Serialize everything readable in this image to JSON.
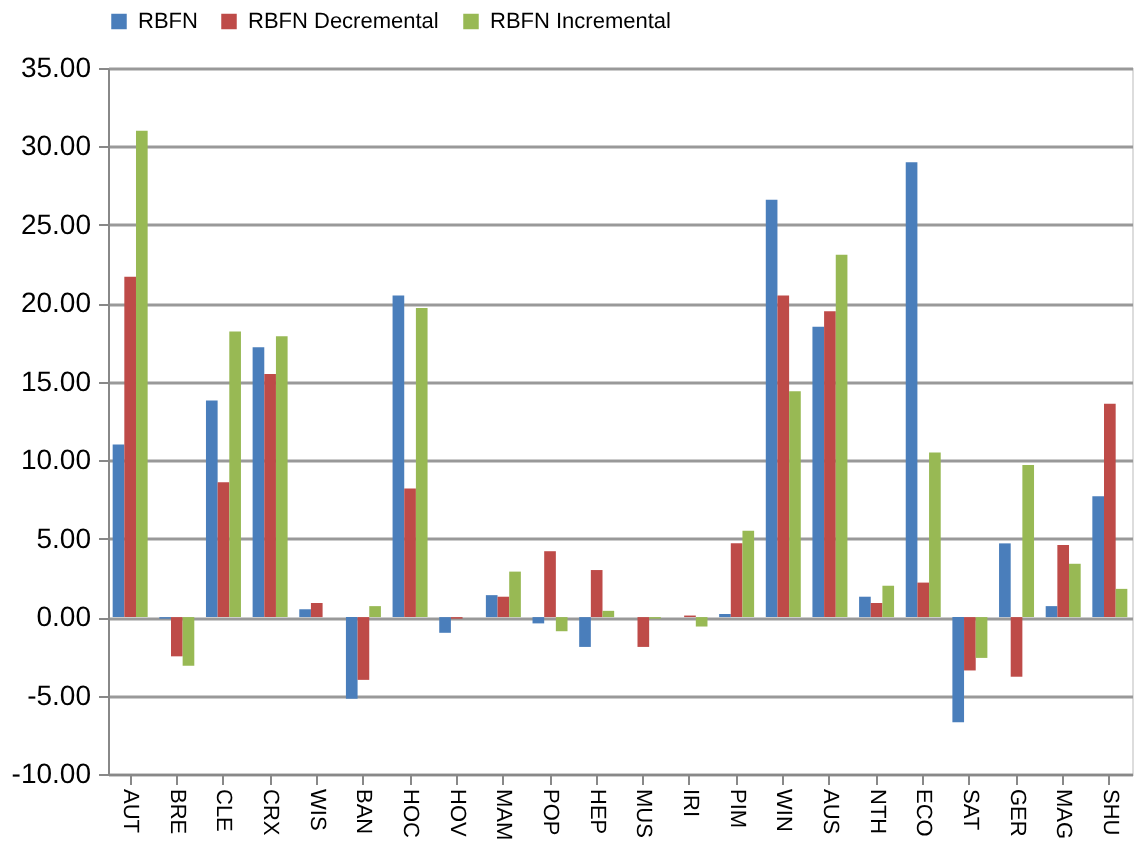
{
  "chart_data": {
    "type": "bar",
    "categories": [
      "AUT",
      "BRE",
      "CLE",
      "CRX",
      "WIS",
      "BAN",
      "HOC",
      "HOV",
      "MAM",
      "POP",
      "HEP",
      "MUS",
      "IRI",
      "PIM",
      "WIN",
      "AUS",
      "NTH",
      "ECO",
      "SAT",
      "GER",
      "MAG",
      "SHU"
    ],
    "series": [
      {
        "name": "RBFN",
        "color": "#4a7ebb",
        "values": [
          11.0,
          -0.1,
          13.8,
          17.2,
          0.5,
          -5.2,
          20.5,
          -1.0,
          1.4,
          -0.4,
          -1.9,
          0,
          0,
          0.2,
          26.6,
          18.5,
          1.3,
          29.0,
          -6.7,
          4.7,
          0.7,
          7.7
        ]
      },
      {
        "name": "RBFN Decremental",
        "color": "#be4b48",
        "values": [
          21.7,
          -2.5,
          8.6,
          15.5,
          0.9,
          -4.0,
          8.2,
          -0.1,
          1.3,
          4.2,
          3.0,
          -1.9,
          0.1,
          4.7,
          20.5,
          19.5,
          0.9,
          2.2,
          -3.4,
          -3.8,
          4.6,
          13.6
        ]
      },
      {
        "name": "RBFN Incremental",
        "color": "#98b954",
        "values": [
          31.0,
          -3.1,
          18.2,
          17.9,
          0,
          0.7,
          19.7,
          0,
          2.9,
          -0.9,
          0.4,
          -0.1,
          -0.6,
          5.5,
          14.4,
          23.1,
          2.0,
          10.5,
          -2.6,
          9.7,
          3.4,
          1.8
        ]
      }
    ],
    "ylim": [
      -10,
      35
    ],
    "yticks": [
      {
        "value": -10,
        "label": "-10.00"
      },
      {
        "value": -5,
        "label": "-5.00"
      },
      {
        "value": 0,
        "label": "0.00"
      },
      {
        "value": 5,
        "label": "5.00"
      },
      {
        "value": 10,
        "label": "10.00"
      },
      {
        "value": 15,
        "label": "15.00"
      },
      {
        "value": 20,
        "label": "20.00"
      },
      {
        "value": 25,
        "label": "25.00"
      },
      {
        "value": 30,
        "label": "30.00"
      },
      {
        "value": 35,
        "label": "35.00"
      }
    ],
    "grid": "y",
    "legend": "top"
  }
}
